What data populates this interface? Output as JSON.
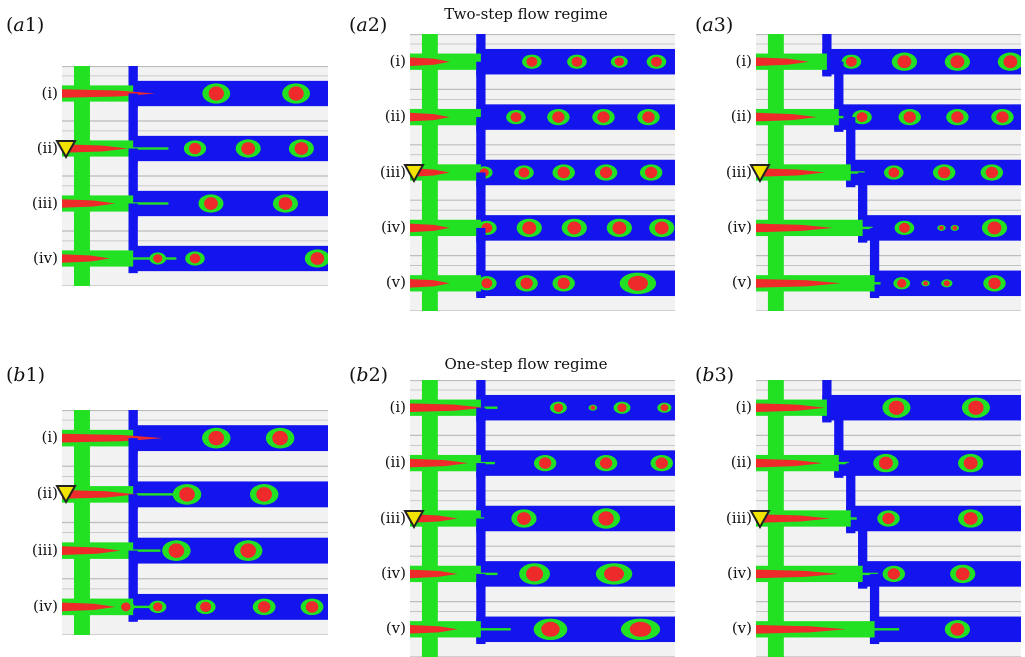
{
  "colors": {
    "main_channel": "#22e122",
    "side_channel": "#1414ee",
    "dispersed_phase": "#ee2a2a",
    "interface": "#22e122",
    "background": "#f2f2f2",
    "grid_line": "#bdbdbd",
    "marker": "#f2e400"
  },
  "titles": {
    "top": "Two-step flow regime",
    "bottom": "One-step flow regime"
  },
  "panels": [
    {
      "id": "a1",
      "label_prefix": "(",
      "label_letter": "a",
      "label_suffix": "1)",
      "rows": [
        "(i)",
        "(ii)",
        "(iii)",
        "(iv)"
      ],
      "marker_row": 1,
      "staircase": false,
      "droplet_rows": [
        {
          "thread": 0.35,
          "drops": [
            {
              "p": 0.58,
              "s": 1.0
            },
            {
              "p": 0.88,
              "s": 1.0
            }
          ]
        },
        {
          "thread": 0.25,
          "neck": 0.3,
          "drops": [
            {
              "p": 0.5,
              "s": 0.8
            },
            {
              "p": 0.7,
              "s": 0.9
            },
            {
              "p": 0.9,
              "s": 0.9
            }
          ]
        },
        {
          "thread": 0.2,
          "neck": 0.4,
          "drops": [
            {
              "p": 0.56,
              "s": 0.9
            },
            {
              "p": 0.84,
              "s": 0.9
            }
          ]
        },
        {
          "thread": 0.18,
          "neck": 0.5,
          "drops": [
            {
              "p": 0.36,
              "s": 0.6
            },
            {
              "p": 0.5,
              "s": 0.7
            },
            {
              "p": 0.96,
              "s": 0.9
            }
          ]
        }
      ]
    },
    {
      "id": "a2",
      "label_prefix": "(",
      "label_letter": "a",
      "label_suffix": "2)",
      "rows": [
        "(i)",
        "(ii)",
        "(iii)",
        "(iv)",
        "(v)"
      ],
      "marker_row": 2,
      "staircase": false,
      "droplet_rows": [
        {
          "thread": 0.15,
          "neck": 0.1,
          "drops": [
            {
              "p": 0.46,
              "s": 0.7
            },
            {
              "p": 0.63,
              "s": 0.7
            },
            {
              "p": 0.79,
              "s": 0.6
            },
            {
              "p": 0.93,
              "s": 0.7
            }
          ]
        },
        {
          "thread": 0.15,
          "neck": 0.2,
          "drops": [
            {
              "p": 0.4,
              "s": 0.7
            },
            {
              "p": 0.56,
              "s": 0.8
            },
            {
              "p": 0.73,
              "s": 0.8
            },
            {
              "p": 0.9,
              "s": 0.8
            }
          ]
        },
        {
          "thread": 0.15,
          "neck": 0.2,
          "drops": [
            {
              "p": 0.28,
              "s": 0.6
            },
            {
              "p": 0.43,
              "s": 0.7
            },
            {
              "p": 0.58,
              "s": 0.8
            },
            {
              "p": 0.74,
              "s": 0.8
            },
            {
              "p": 0.91,
              "s": 0.8
            }
          ]
        },
        {
          "thread": 0.15,
          "neck": 0.2,
          "drops": [
            {
              "p": 0.29,
              "s": 0.7
            },
            {
              "p": 0.45,
              "s": 0.9
            },
            {
              "p": 0.62,
              "s": 0.9
            },
            {
              "p": 0.79,
              "s": 0.9
            },
            {
              "p": 0.95,
              "s": 0.9
            }
          ]
        },
        {
          "thread": 0.15,
          "neck": 0.2,
          "drops": [
            {
              "p": 0.29,
              "s": 0.7
            },
            {
              "p": 0.44,
              "s": 0.8
            },
            {
              "p": 0.58,
              "s": 0.8
            },
            {
              "p": 0.86,
              "s": 1.3
            }
          ]
        }
      ]
    },
    {
      "id": "a3",
      "label_prefix": "(",
      "label_letter": "a",
      "label_suffix": "3)",
      "rows": [
        "(i)",
        "(ii)",
        "(iii)",
        "(iv)",
        "(v)"
      ],
      "marker_row": 2,
      "staircase": true,
      "droplet_rows": [
        {
          "thread": 0.2,
          "drops": [
            {
              "p": 0.36,
              "s": 0.7
            },
            {
              "p": 0.56,
              "s": 0.9
            },
            {
              "p": 0.76,
              "s": 0.9
            },
            {
              "p": 0.96,
              "s": 0.9
            }
          ]
        },
        {
          "thread": 0.2,
          "neck": 0.2,
          "drops": [
            {
              "p": 0.4,
              "s": 0.7
            },
            {
              "p": 0.58,
              "s": 0.8
            },
            {
              "p": 0.76,
              "s": 0.8
            },
            {
              "p": 0.93,
              "s": 0.8
            }
          ]
        },
        {
          "thread": 0.2,
          "neck": 0.3,
          "drops": [
            {
              "p": 0.52,
              "s": 0.7
            },
            {
              "p": 0.71,
              "s": 0.8
            },
            {
              "p": 0.89,
              "s": 0.8
            }
          ]
        },
        {
          "thread": 0.2,
          "neck": 0.3,
          "drops": [
            {
              "p": 0.56,
              "s": 0.7
            },
            {
              "p": 0.7,
              "s": 0.3
            },
            {
              "p": 0.75,
              "s": 0.3
            },
            {
              "p": 0.9,
              "s": 0.9
            }
          ]
        },
        {
          "thread": 0.2,
          "neck": 0.3,
          "drops": [
            {
              "p": 0.55,
              "s": 0.6
            },
            {
              "p": 0.64,
              "s": 0.3
            },
            {
              "p": 0.72,
              "s": 0.4
            },
            {
              "p": 0.9,
              "s": 0.8
            }
          ]
        }
      ]
    },
    {
      "id": "b1",
      "label_prefix": "(",
      "label_letter": "b",
      "label_suffix": "1)",
      "rows": [
        "(i)",
        "(ii)",
        "(iii)",
        "(iv)"
      ],
      "marker_row": 1,
      "staircase": false,
      "droplet_rows": [
        {
          "thread": 0.38,
          "drops": [
            {
              "p": 0.58,
              "s": 1.0
            },
            {
              "p": 0.82,
              "s": 1.0
            }
          ]
        },
        {
          "thread": 0.28,
          "neck": 0.3,
          "drops": [
            {
              "p": 0.47,
              "s": 1.0
            },
            {
              "p": 0.76,
              "s": 1.0
            }
          ]
        },
        {
          "thread": 0.22,
          "neck": 0.3,
          "drops": [
            {
              "p": 0.43,
              "s": 1.0
            },
            {
              "p": 0.7,
              "s": 1.0
            }
          ]
        },
        {
          "thread": 0.2,
          "neck": 0.3,
          "drops": [
            {
              "p": 0.24,
              "s": 0.6
            },
            {
              "p": 0.36,
              "s": 0.6
            },
            {
              "p": 0.54,
              "s": 0.7
            },
            {
              "p": 0.76,
              "s": 0.8
            },
            {
              "p": 0.94,
              "s": 0.8
            }
          ]
        }
      ]
    },
    {
      "id": "b2",
      "label_prefix": "(",
      "label_letter": "b",
      "label_suffix": "2)",
      "rows": [
        "(i)",
        "(ii)",
        "(iii)",
        "(iv)",
        "(v)"
      ],
      "marker_row": 2,
      "staircase": false,
      "droplet_rows": [
        {
          "thread": 0.28,
          "neck": 0.1,
          "drops": [
            {
              "p": 0.56,
              "s": 0.6
            },
            {
              "p": 0.69,
              "s": 0.3
            },
            {
              "p": 0.8,
              "s": 0.6
            },
            {
              "p": 0.96,
              "s": 0.5
            }
          ]
        },
        {
          "thread": 0.22,
          "neck": 0.2,
          "drops": [
            {
              "p": 0.51,
              "s": 0.8
            },
            {
              "p": 0.74,
              "s": 0.8
            },
            {
              "p": 0.95,
              "s": 0.8
            }
          ]
        },
        {
          "thread": 0.18,
          "neck": 0.2,
          "drops": [
            {
              "p": 0.43,
              "s": 0.9
            },
            {
              "p": 0.74,
              "s": 1.0
            }
          ]
        },
        {
          "thread": 0.18,
          "neck": 0.3,
          "drops": [
            {
              "p": 0.47,
              "s": 1.1
            },
            {
              "p": 0.77,
              "s": 1.3
            }
          ]
        },
        {
          "thread": 0.18,
          "neck": 0.4,
          "drops": [
            {
              "p": 0.53,
              "s": 1.2
            },
            {
              "p": 0.87,
              "s": 1.4
            }
          ]
        }
      ]
    },
    {
      "id": "b3",
      "label_prefix": "(",
      "label_letter": "b",
      "label_suffix": "3)",
      "rows": [
        "(i)",
        "(ii)",
        "(iii)",
        "(iv)",
        "(v)"
      ],
      "marker_row": 2,
      "staircase": true,
      "droplet_rows": [
        {
          "thread": 0.26,
          "drops": [
            {
              "p": 0.53,
              "s": 1.0
            },
            {
              "p": 0.83,
              "s": 1.0
            }
          ]
        },
        {
          "thread": 0.22,
          "neck": 0.2,
          "drops": [
            {
              "p": 0.49,
              "s": 0.9
            },
            {
              "p": 0.81,
              "s": 0.9
            }
          ]
        },
        {
          "thread": 0.22,
          "neck": 0.2,
          "drops": [
            {
              "p": 0.5,
              "s": 0.8
            },
            {
              "p": 0.81,
              "s": 0.9
            }
          ]
        },
        {
          "thread": 0.22,
          "neck": 0.3,
          "drops": [
            {
              "p": 0.52,
              "s": 0.8
            },
            {
              "p": 0.78,
              "s": 0.9
            }
          ]
        },
        {
          "thread": 0.22,
          "neck": 0.4,
          "drops": [
            {
              "p": 0.76,
              "s": 0.9
            }
          ]
        }
      ]
    }
  ]
}
